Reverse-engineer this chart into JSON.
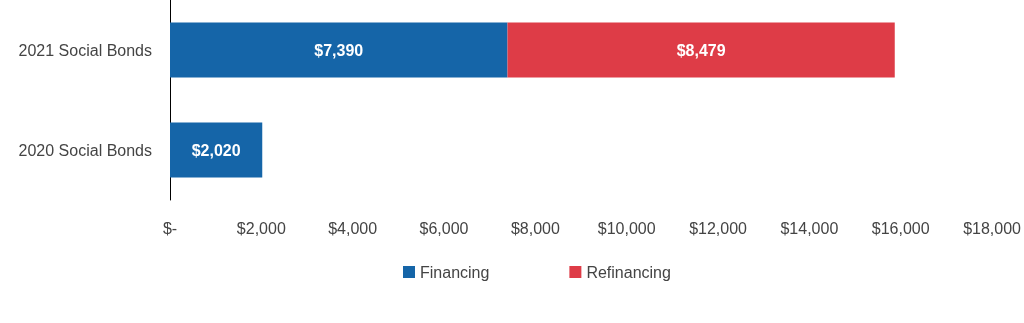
{
  "chart_data": {
    "type": "bar",
    "orientation": "horizontal",
    "stacked": true,
    "categories": [
      "2021 Social Bonds",
      "2020 Social Bonds"
    ],
    "series": [
      {
        "name": "Financing",
        "color": "#1565a8",
        "values": [
          7390,
          2020
        ],
        "value_labels": [
          "$7,390",
          "$2,020"
        ]
      },
      {
        "name": "Refinancing",
        "color": "#de3c47",
        "values": [
          8479,
          null
        ],
        "value_labels": [
          "$8,479",
          null
        ]
      }
    ],
    "xlim": [
      0,
      18000
    ],
    "xticks": [
      {
        "value": 0,
        "label": "$-"
      },
      {
        "value": 2000,
        "label": "$2,000"
      },
      {
        "value": 4000,
        "label": "$4,000"
      },
      {
        "value": 6000,
        "label": "$6,000"
      },
      {
        "value": 8000,
        "label": "$8,000"
      },
      {
        "value": 10000,
        "label": "$10,000"
      },
      {
        "value": 12000,
        "label": "$12,000"
      },
      {
        "value": 14000,
        "label": "$14,000"
      },
      {
        "value": 16000,
        "label": "$16,000"
      },
      {
        "value": 18000,
        "label": "$18,000"
      }
    ],
    "grid": false,
    "legend": "bottom"
  }
}
